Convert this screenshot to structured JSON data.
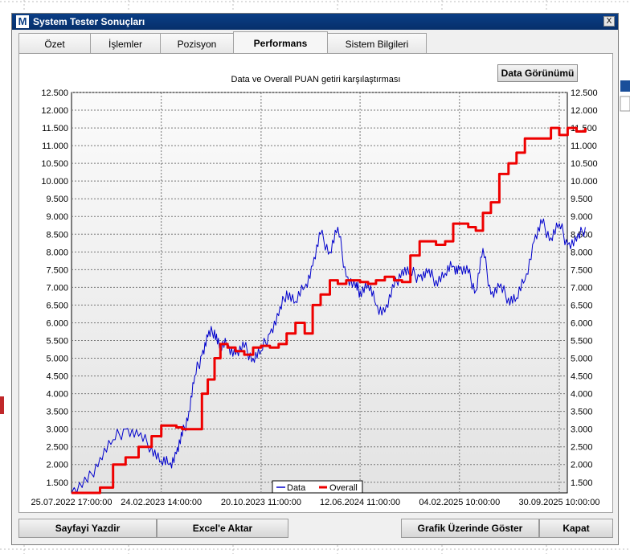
{
  "window": {
    "title": "System Tester Sonuçları",
    "close_label": "X"
  },
  "tabs": [
    {
      "label": "Özet"
    },
    {
      "label": "İşlemler"
    },
    {
      "label": "Pozisyon"
    },
    {
      "label": "Performans",
      "active": true
    },
    {
      "label": "Sistem Bilgileri"
    }
  ],
  "data_view_button": "Data Görünümü",
  "footer": {
    "print_button": "Sayfayi Yazdir",
    "excel_button": "Excel'e Aktar",
    "show_on_chart_button": "Grafik Üzerinde Göster",
    "close_button": "Kapat"
  },
  "colors": {
    "data": "#0000cc",
    "overall": "#ee0000",
    "titlebar": "#0a3e86"
  },
  "chart_data": {
    "type": "line",
    "title": "Data ve Overall PUAN getiri karşılaştırması",
    "x_ticks": [
      "25.07.2022 17:00:00",
      "24.02.2023 14:00:00",
      "20.10.2023 11:00:00",
      "12.06.2024 11:00:00",
      "04.02.2025 10:00:00",
      "30.09.2025 10:00:00"
    ],
    "y_ticks": [
      "1.500",
      "2.000",
      "2.500",
      "3.000",
      "3.500",
      "4.000",
      "4.500",
      "5.000",
      "5.500",
      "6.000",
      "6.500",
      "7.000",
      "7.500",
      "8.000",
      "8.500",
      "9.000",
      "9.500",
      "10.000",
      "10.500",
      "11.000",
      "11.500",
      "12.000",
      "12.500"
    ],
    "ylim": [
      1200,
      12500
    ],
    "grid": true,
    "legend_position": "bottom-center",
    "series": [
      {
        "name": "Data",
        "color": "#0000cc",
        "x": [
          "2022-07-25",
          "2022-09-01",
          "2022-10-01",
          "2022-11-01",
          "2022-12-01",
          "2023-01-01",
          "2023-02-01",
          "2023-02-24",
          "2023-03-15",
          "2023-04-01",
          "2023-04-15",
          "2023-05-01",
          "2023-05-15",
          "2023-06-01",
          "2023-06-15",
          "2023-07-01",
          "2023-07-15",
          "2023-08-01",
          "2023-08-20",
          "2023-09-10",
          "2023-10-01",
          "2023-10-20",
          "2023-11-10",
          "2023-12-01",
          "2023-12-20",
          "2024-01-10",
          "2024-02-01",
          "2024-02-20",
          "2024-03-10",
          "2024-04-01",
          "2024-04-20",
          "2024-05-10",
          "2024-06-01",
          "2024-06-12",
          "2024-07-01",
          "2024-07-20",
          "2024-08-10",
          "2024-09-01",
          "2024-09-20",
          "2024-10-10",
          "2024-11-01",
          "2024-11-20",
          "2024-12-10",
          "2025-01-01",
          "2025-01-20",
          "2025-02-04",
          "2025-02-25",
          "2025-03-15",
          "2025-04-01",
          "2025-04-20",
          "2025-05-10",
          "2025-06-01",
          "2025-06-20",
          "2025-07-10",
          "2025-08-01",
          "2025-08-20",
          "2025-09-10",
          "2025-09-30",
          "2025-10-20",
          "2025-11-10",
          "2025-12-01"
        ],
        "values": [
          1200,
          1500,
          2200,
          2700,
          3000,
          2800,
          2500,
          2100,
          2000,
          2300,
          2800,
          3500,
          4500,
          5100,
          5600,
          5800,
          5300,
          5400,
          5100,
          5300,
          5000,
          5200,
          5700,
          6200,
          6900,
          6600,
          7000,
          7600,
          8500,
          8000,
          8700,
          7300,
          7000,
          6900,
          7100,
          6500,
          6300,
          7000,
          7500,
          7400,
          7300,
          7400,
          7200,
          7400,
          7600,
          7500,
          7400,
          6900,
          8100,
          6800,
          7000,
          6700,
          6700,
          7200,
          8300,
          8800,
          8400,
          8800,
          8200,
          8300,
          8700
        ]
      },
      {
        "name": "Overall",
        "color": "#ee0000",
        "x": [
          "2022-07-25",
          "2022-09-01",
          "2022-10-01",
          "2022-11-01",
          "2022-12-01",
          "2023-01-01",
          "2023-02-01",
          "2023-02-24",
          "2023-03-15",
          "2023-04-01",
          "2023-04-15",
          "2023-05-01",
          "2023-05-15",
          "2023-06-01",
          "2023-06-15",
          "2023-07-01",
          "2023-07-15",
          "2023-08-01",
          "2023-08-20",
          "2023-09-10",
          "2023-10-01",
          "2023-10-20",
          "2023-11-10",
          "2023-12-01",
          "2023-12-20",
          "2024-01-10",
          "2024-02-01",
          "2024-02-20",
          "2024-03-10",
          "2024-04-01",
          "2024-04-20",
          "2024-05-10",
          "2024-06-01",
          "2024-06-12",
          "2024-07-01",
          "2024-07-20",
          "2024-08-10",
          "2024-09-01",
          "2024-09-20",
          "2024-10-10",
          "2024-11-01",
          "2024-11-20",
          "2024-12-10",
          "2025-01-01",
          "2025-01-20",
          "2025-02-04",
          "2025-02-25",
          "2025-03-15",
          "2025-04-01",
          "2025-04-20",
          "2025-05-10",
          "2025-06-01",
          "2025-06-20",
          "2025-07-10",
          "2025-08-01",
          "2025-08-20",
          "2025-09-10",
          "2025-09-30",
          "2025-10-20",
          "2025-11-10",
          "2025-12-01"
        ],
        "values": [
          1200,
          1200,
          1350,
          2000,
          2200,
          2500,
          2800,
          3100,
          3100,
          3050,
          3000,
          3000,
          3000,
          4000,
          4400,
          5000,
          5400,
          5300,
          5200,
          5100,
          5300,
          5350,
          5300,
          5400,
          5700,
          6000,
          5700,
          6500,
          6800,
          7200,
          7100,
          7200,
          7200,
          7150,
          7100,
          7200,
          7300,
          7200,
          7150,
          7900,
          8300,
          8300,
          8200,
          8300,
          8800,
          8800,
          8700,
          8600,
          9100,
          9400,
          10200,
          10500,
          10800,
          11200,
          11200,
          11200,
          11500,
          11300,
          11500,
          11400,
          11500
        ]
      }
    ]
  }
}
